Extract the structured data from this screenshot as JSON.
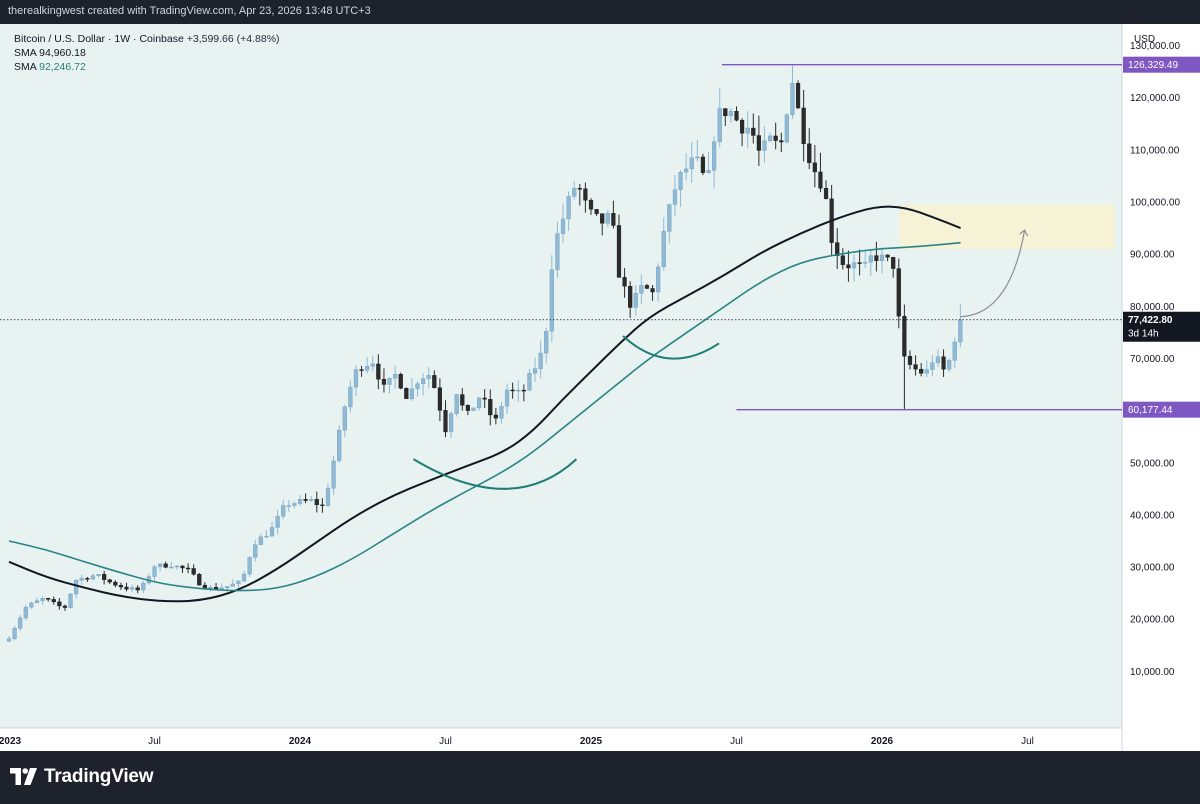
{
  "header": {
    "credit": "therealkingwest created with TradingView.com, Apr 23, 2026 13:48 UTC+3"
  },
  "legend": {
    "symbol": "Bitcoin / U.S. Dollar · 1W · Coinbase",
    "change": "+3,599.66 (+4.88%)",
    "sma1_label": "SMA",
    "sma1_value": "94,960.18",
    "sma2_label": "SMA",
    "sma2_value": "92,246.72"
  },
  "price_axis": {
    "currency": "USD",
    "ticks": [
      {
        "value": 130000,
        "label": "130,000.00"
      },
      {
        "value": 120000,
        "label": "120,000.00"
      },
      {
        "value": 110000,
        "label": "110,000.00"
      },
      {
        "value": 100000,
        "label": "100,000.00"
      },
      {
        "value": 90000,
        "label": "90,000.00"
      },
      {
        "value": 80000,
        "label": "80,000.00"
      },
      {
        "value": 70000,
        "label": "70,000.00"
      },
      {
        "value": 50000,
        "label": "50,000.00"
      },
      {
        "value": 40000,
        "label": "40,000.00"
      },
      {
        "value": 30000,
        "label": "30,000.00"
      },
      {
        "value": 20000,
        "label": "20,000.00"
      },
      {
        "value": 10000,
        "label": "10,000.00"
      }
    ]
  },
  "time_axis": {
    "ticks": [
      {
        "t": 0.0,
        "label": "2023"
      },
      {
        "t": 0.5,
        "label": "Jul"
      },
      {
        "t": 1.0,
        "label": "2024"
      },
      {
        "t": 1.5,
        "label": "Jul"
      },
      {
        "t": 2.0,
        "label": "2025"
      },
      {
        "t": 2.5,
        "label": "Jul"
      },
      {
        "t": 3.0,
        "label": "2026"
      },
      {
        "t": 3.5,
        "label": "Jul"
      }
    ]
  },
  "markers": {
    "high": {
      "value": 126329.49,
      "label": "126,329.49",
      "color": "#7e57c2",
      "t_start": 2.45
    },
    "low": {
      "value": 60177.44,
      "label": "60,177.44",
      "color": "#7e57c2",
      "t_start": 2.5
    },
    "current": {
      "value": 77422.8,
      "label": "77,422.80",
      "countdown": "3d 14h",
      "color": "#131722"
    }
  },
  "colors": {
    "background": "#e8f2f1",
    "bull": "#90b9d4",
    "bear": "#2b2b2b",
    "sma1": "#131722",
    "sma2": "#2a8486",
    "zone": "#f6f2d2",
    "annotation": "#1f7d74"
  },
  "annotations": {
    "target_zone": {
      "t_start": 3.06,
      "t_end": 3.8,
      "price_top": 99500,
      "price_bottom": 91000
    },
    "arcs": [
      {
        "points": [
          [
            1.39,
            50700
          ],
          [
            1.7,
            45000
          ],
          [
            1.95,
            50700
          ]
        ]
      },
      {
        "points": [
          [
            2.11,
            74300
          ],
          [
            2.27,
            70000
          ],
          [
            2.44,
            72900
          ]
        ]
      }
    ],
    "arrow": {
      "from": [
        3.27,
        78000
      ],
      "to": [
        3.49,
        94600
      ],
      "color": "#8a8f96"
    }
  },
  "chart_data": {
    "type": "candlestick",
    "title": "Bitcoin / U.S. Dollar · 1W · Coinbase",
    "timeframe": "1W",
    "ylim": [
      0,
      138000
    ],
    "x_range": [
      0,
      3.88
    ],
    "candle_anchors": [
      [
        0.0,
        16500
      ],
      [
        0.06,
        22500
      ],
      [
        0.12,
        24000
      ],
      [
        0.19,
        22000
      ],
      [
        0.23,
        27500
      ],
      [
        0.3,
        28500
      ],
      [
        0.35,
        27000
      ],
      [
        0.4,
        26000
      ],
      [
        0.45,
        25500
      ],
      [
        0.5,
        30200
      ],
      [
        0.56,
        30400
      ],
      [
        0.62,
        29300
      ],
      [
        0.66,
        26500
      ],
      [
        0.7,
        25800
      ],
      [
        0.75,
        26300
      ],
      [
        0.8,
        27200
      ],
      [
        0.84,
        34500
      ],
      [
        0.9,
        37000
      ],
      [
        0.95,
        42000
      ],
      [
        1.0,
        42500
      ],
      [
        1.04,
        42700
      ],
      [
        1.08,
        41500
      ],
      [
        1.12,
        51500
      ],
      [
        1.16,
        62500
      ],
      [
        1.2,
        68500
      ],
      [
        1.25,
        69500
      ],
      [
        1.29,
        64000
      ],
      [
        1.33,
        67000
      ],
      [
        1.37,
        62500
      ],
      [
        1.41,
        66500
      ],
      [
        1.45,
        67000
      ],
      [
        1.5,
        56500
      ],
      [
        1.54,
        64000
      ],
      [
        1.57,
        58500
      ],
      [
        1.62,
        63000
      ],
      [
        1.67,
        57500
      ],
      [
        1.71,
        64000
      ],
      [
        1.76,
        63000
      ],
      [
        1.8,
        67500
      ],
      [
        1.84,
        72000
      ],
      [
        1.87,
        91000
      ],
      [
        1.91,
        98000
      ],
      [
        1.95,
        104000
      ],
      [
        1.99,
        98000
      ],
      [
        2.03,
        96000
      ],
      [
        2.07,
        97000
      ],
      [
        2.1,
        85000
      ],
      [
        2.14,
        80000
      ],
      [
        2.18,
        84000
      ],
      [
        2.21,
        82000
      ],
      [
        2.25,
        94000
      ],
      [
        2.29,
        103000
      ],
      [
        2.32,
        106000
      ],
      [
        2.36,
        108000
      ],
      [
        2.4,
        103000
      ],
      [
        2.43,
        116000
      ],
      [
        2.47,
        118000
      ],
      [
        2.51,
        115000
      ],
      [
        2.55,
        114000
      ],
      [
        2.58,
        109000
      ],
      [
        2.62,
        112000
      ],
      [
        2.65,
        110000
      ],
      [
        2.69,
        124000
      ],
      [
        2.72,
        115000
      ],
      [
        2.76,
        107000
      ],
      [
        2.8,
        103000
      ],
      [
        2.83,
        92000
      ],
      [
        2.87,
        88000
      ],
      [
        2.9,
        88000
      ],
      [
        2.94,
        87000
      ],
      [
        2.97,
        90000
      ],
      [
        3.0,
        89000
      ],
      [
        3.04,
        88000
      ],
      [
        3.07,
        70000
      ],
      [
        3.11,
        68000
      ],
      [
        3.15,
        67000
      ],
      [
        3.18,
        70500
      ],
      [
        3.22,
        67000
      ],
      [
        3.25,
        74000
      ],
      [
        3.27,
        77400
      ]
    ],
    "sma_series": [
      {
        "name": "SMA",
        "value": "94,960.18",
        "points": [
          [
            0.0,
            31000
          ],
          [
            0.13,
            28000
          ],
          [
            0.26,
            26000
          ],
          [
            0.39,
            24300
          ],
          [
            0.52,
            23400
          ],
          [
            0.66,
            23500
          ],
          [
            0.79,
            25500
          ],
          [
            0.92,
            29500
          ],
          [
            1.05,
            34500
          ],
          [
            1.18,
            39500
          ],
          [
            1.31,
            43500
          ],
          [
            1.44,
            46500
          ],
          [
            1.57,
            49300
          ],
          [
            1.7,
            52000
          ],
          [
            1.8,
            56000
          ],
          [
            1.9,
            62000
          ],
          [
            2.0,
            67500
          ],
          [
            2.1,
            73000
          ],
          [
            2.2,
            78000
          ],
          [
            2.33,
            82000
          ],
          [
            2.46,
            86000
          ],
          [
            2.59,
            90500
          ],
          [
            2.72,
            94000
          ],
          [
            2.85,
            97000
          ],
          [
            2.98,
            99200
          ],
          [
            3.08,
            99000
          ],
          [
            3.18,
            97000
          ],
          [
            3.27,
            95000
          ]
        ]
      },
      {
        "name": "SMA",
        "value": "92,246.72",
        "points": [
          [
            0.0,
            35000
          ],
          [
            0.13,
            33300
          ],
          [
            0.26,
            31000
          ],
          [
            0.39,
            28800
          ],
          [
            0.52,
            26800
          ],
          [
            0.66,
            25800
          ],
          [
            0.79,
            25400
          ],
          [
            0.92,
            25800
          ],
          [
            1.05,
            28000
          ],
          [
            1.18,
            31500
          ],
          [
            1.31,
            36000
          ],
          [
            1.44,
            40500
          ],
          [
            1.57,
            44500
          ],
          [
            1.7,
            48300
          ],
          [
            1.8,
            52000
          ],
          [
            1.9,
            56500
          ],
          [
            2.0,
            61000
          ],
          [
            2.1,
            65500
          ],
          [
            2.2,
            70000
          ],
          [
            2.33,
            75000
          ],
          [
            2.46,
            80000
          ],
          [
            2.59,
            85000
          ],
          [
            2.72,
            88500
          ],
          [
            2.85,
            90000
          ],
          [
            2.98,
            91000
          ],
          [
            3.08,
            91300
          ],
          [
            3.18,
            91700
          ],
          [
            3.27,
            92200
          ]
        ]
      }
    ]
  }
}
